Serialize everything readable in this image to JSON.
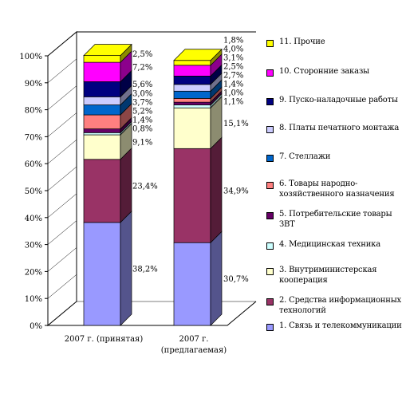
{
  "chart_data": {
    "type": "bar",
    "stacked": true,
    "percent": true,
    "categories": [
      "2007 г. (принятая)",
      "2007 г. (предлагаемая)"
    ],
    "ytick_labels": [
      "0%",
      "10%",
      "20%",
      "30%",
      "40%",
      "50%",
      "60%",
      "70%",
      "80%",
      "90%",
      "100%"
    ],
    "ylim": [
      0,
      100
    ],
    "grid": false,
    "legend_position": "right",
    "series": [
      {
        "name": "1. Связь и телекоммуникации",
        "values": [
          38.2,
          30.7
        ],
        "labels": [
          "38,2%",
          "30,7%"
        ],
        "color": "#9999FF"
      },
      {
        "name": "2. Средства информационных технологий",
        "values": [
          23.4,
          34.9
        ],
        "labels": [
          "23,4%",
          "34,9%"
        ],
        "color": "#993366"
      },
      {
        "name": "3. Внутриминистерская кооперация",
        "values": [
          9.1,
          15.1
        ],
        "labels": [
          "9,1%",
          "15,1%"
        ],
        "color": "#FFFFCC"
      },
      {
        "name": "4. Медицинская техника",
        "values": [
          0.8,
          1.1
        ],
        "labels": [
          "0,8%",
          "1,1%"
        ],
        "color": "#CCFFFF"
      },
      {
        "name": "5. Потребительские товары ЗВТ",
        "values": [
          1.4,
          1.0
        ],
        "labels": [
          "1,4%",
          "1,0%"
        ],
        "color": "#660066"
      },
      {
        "name": "6. Товары народно-хозяйственного назначения",
        "values": [
          5.2,
          1.4
        ],
        "labels": [
          "5,2%",
          "1,4%"
        ],
        "color": "#FF8080"
      },
      {
        "name": "7. Стеллажи",
        "values": [
          3.7,
          2.7
        ],
        "labels": [
          "3,7%",
          "2,7%"
        ],
        "color": "#0066CC"
      },
      {
        "name": "8. Платы печатного монтажа",
        "values": [
          3.0,
          2.5
        ],
        "labels": [
          "3,0%",
          "2,5%"
        ],
        "color": "#CCCCFF"
      },
      {
        "name": "9. Пуско-наладочные работы",
        "values": [
          5.6,
          3.1
        ],
        "labels": [
          "5,6%",
          "3,1%"
        ],
        "color": "#000080"
      },
      {
        "name": "10. Сторонние заказы",
        "values": [
          7.2,
          4.0
        ],
        "labels": [
          "7,2%",
          "4,0%"
        ],
        "color": "#FF00FF"
      },
      {
        "name": "11. Прочие",
        "values": [
          2.5,
          1.8
        ],
        "labels": [
          "2,5%",
          "1,8%"
        ],
        "color": "#FFFF00"
      }
    ]
  }
}
